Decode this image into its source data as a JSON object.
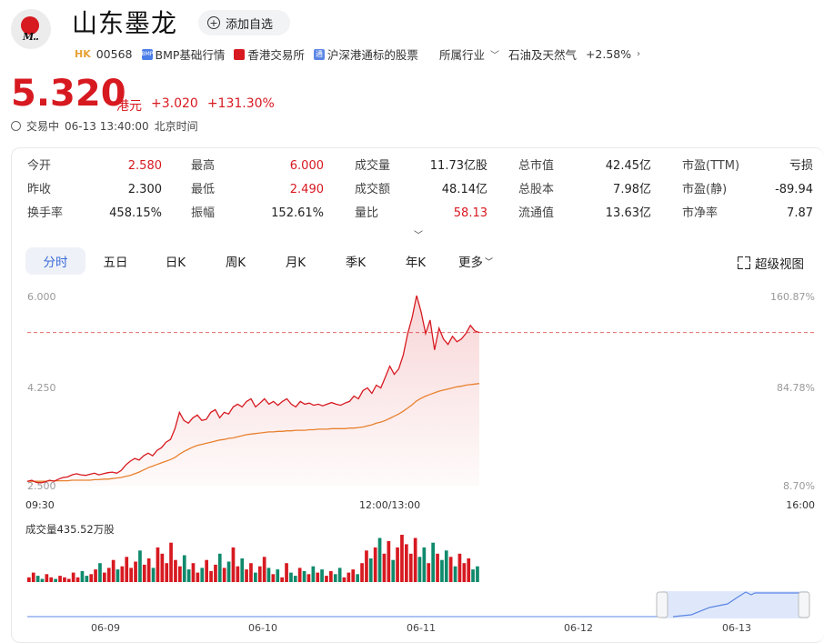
{
  "header": {
    "logo_text": "M..",
    "name": "山东墨龙",
    "watch_label": "添加自选",
    "market": "HK",
    "code": "00568",
    "bmp_icon": "BMP",
    "bmp_label": "BMP基础行情",
    "exchange_label": "香港交易所",
    "connect_label": "沪深港通标的股票",
    "industry_label": "所属行业",
    "sector_label": "石油及天然气",
    "sector_change": "+2.58%"
  },
  "quote": {
    "price": "5.320",
    "currency": "港元",
    "change": "+3.020",
    "change_pct": "+131.30%",
    "status": "交易中",
    "time": "06-13 13:40:00",
    "tz": "北京时间"
  },
  "stats": [
    {
      "label": "今开",
      "value": "2.580",
      "color": "red"
    },
    {
      "label": "最高",
      "value": "6.000",
      "color": "red"
    },
    {
      "label": "成交量",
      "value": "11.73亿股",
      "color": ""
    },
    {
      "label": "总市值",
      "value": "42.45亿",
      "color": ""
    },
    {
      "label": "市盈(TTM)",
      "value": "亏损",
      "color": ""
    },
    {
      "label": "昨收",
      "value": "2.300",
      "color": ""
    },
    {
      "label": "最低",
      "value": "2.490",
      "color": "red"
    },
    {
      "label": "成交额",
      "value": "48.14亿",
      "color": ""
    },
    {
      "label": "总股本",
      "value": "7.98亿",
      "color": ""
    },
    {
      "label": "市盈(静)",
      "value": "-89.94",
      "color": ""
    },
    {
      "label": "换手率",
      "value": "458.15%",
      "color": ""
    },
    {
      "label": "振幅",
      "value": "152.61%",
      "color": ""
    },
    {
      "label": "量比",
      "value": "58.13",
      "color": "red"
    },
    {
      "label": "流通值",
      "value": "13.63亿",
      "color": ""
    },
    {
      "label": "市净率",
      "value": "7.87",
      "color": ""
    }
  ],
  "tabs": [
    "分时",
    "五日",
    "日K",
    "周K",
    "月K",
    "季K",
    "年K",
    "更多"
  ],
  "super_view": "超级视图",
  "chart_data": {
    "type": "line",
    "y_left_ticks": [
      "6.000",
      "4.250",
      "2.500"
    ],
    "y_right_ticks": [
      "160.87%",
      "84.78%",
      "8.70%"
    ],
    "x_ticks": [
      "09:30",
      "12:00/13:00",
      "16:00"
    ],
    "ylim": [
      2.5,
      6.0
    ],
    "prev_close": 2.3,
    "reference_price": 5.32,
    "colors": {
      "price": "#d71920",
      "avg": "#e8812e",
      "up": "#d71920",
      "down": "#0f8a6c"
    },
    "price_series": [
      2.58,
      2.6,
      2.56,
      2.55,
      2.57,
      2.6,
      2.58,
      2.62,
      2.65,
      2.66,
      2.7,
      2.72,
      2.7,
      2.69,
      2.71,
      2.73,
      2.7,
      2.72,
      2.74,
      2.75,
      2.73,
      2.78,
      2.88,
      2.95,
      3.0,
      2.97,
      3.05,
      3.1,
      3.05,
      3.15,
      3.2,
      3.3,
      3.35,
      3.55,
      3.85,
      3.7,
      3.65,
      3.75,
      3.8,
      3.7,
      3.72,
      3.85,
      3.9,
      3.75,
      3.85,
      3.82,
      3.95,
      4.0,
      3.95,
      4.05,
      4.1,
      3.95,
      4.02,
      4.1,
      4.0,
      4.05,
      3.98,
      4.05,
      4.1,
      4.0,
      3.95,
      4.05,
      4.0,
      4.02,
      3.98,
      4.0,
      3.97,
      4.0,
      4.03,
      4.0,
      3.98,
      4.02,
      4.05,
      4.15,
      4.1,
      4.25,
      4.3,
      4.2,
      4.35,
      4.3,
      4.5,
      4.7,
      4.55,
      4.65,
      4.9,
      5.3,
      5.6,
      6.0,
      5.7,
      5.3,
      5.55,
      5.0,
      5.4,
      5.2,
      5.1,
      5.25,
      5.15,
      5.2,
      5.3,
      5.45,
      5.35,
      5.32
    ],
    "avg_series": [
      2.58,
      2.58,
      2.58,
      2.58,
      2.58,
      2.59,
      2.59,
      2.59,
      2.59,
      2.59,
      2.6,
      2.6,
      2.6,
      2.6,
      2.6,
      2.61,
      2.61,
      2.62,
      2.62,
      2.63,
      2.64,
      2.65,
      2.67,
      2.69,
      2.72,
      2.75,
      2.79,
      2.83,
      2.86,
      2.89,
      2.92,
      2.95,
      2.98,
      3.02,
      3.08,
      3.13,
      3.17,
      3.21,
      3.24,
      3.26,
      3.28,
      3.3,
      3.32,
      3.34,
      3.35,
      3.37,
      3.38,
      3.4,
      3.42,
      3.44,
      3.45,
      3.46,
      3.47,
      3.48,
      3.49,
      3.49,
      3.5,
      3.5,
      3.51,
      3.51,
      3.52,
      3.52,
      3.52,
      3.53,
      3.53,
      3.54,
      3.54,
      3.54,
      3.55,
      3.55,
      3.55,
      3.55,
      3.56,
      3.56,
      3.57,
      3.58,
      3.6,
      3.62,
      3.65,
      3.67,
      3.7,
      3.74,
      3.78,
      3.82,
      3.87,
      3.93,
      3.99,
      4.06,
      4.11,
      4.15,
      4.18,
      4.21,
      4.24,
      4.26,
      4.28,
      4.3,
      4.32,
      4.33,
      4.35,
      4.36,
      4.37,
      4.38
    ],
    "volume_label": "成交量435.52万股",
    "volume_series": [
      3,
      6,
      4,
      2,
      5,
      3,
      2,
      4,
      3,
      2,
      6,
      3,
      7,
      4,
      5,
      8,
      12,
      6,
      9,
      14,
      8,
      10,
      16,
      9,
      13,
      20,
      11,
      15,
      9,
      22,
      18,
      12,
      25,
      14,
      10,
      17,
      8,
      12,
      6,
      9,
      14,
      7,
      11,
      18,
      9,
      13,
      22,
      10,
      15,
      8,
      12,
      6,
      10,
      16,
      9,
      5,
      8,
      3,
      12,
      6,
      4,
      9,
      7,
      5,
      10,
      6,
      8,
      4,
      7,
      5,
      9,
      3,
      6,
      8,
      5,
      12,
      20,
      15,
      22,
      28,
      18,
      26,
      14,
      22,
      30,
      24,
      18,
      28,
      16,
      22,
      12,
      25,
      18,
      14,
      20,
      16,
      10,
      18,
      12,
      15,
      8,
      10
    ],
    "nav_dates": [
      "06-09",
      "06-10",
      "06-11",
      "06-12",
      "06-13"
    ]
  }
}
